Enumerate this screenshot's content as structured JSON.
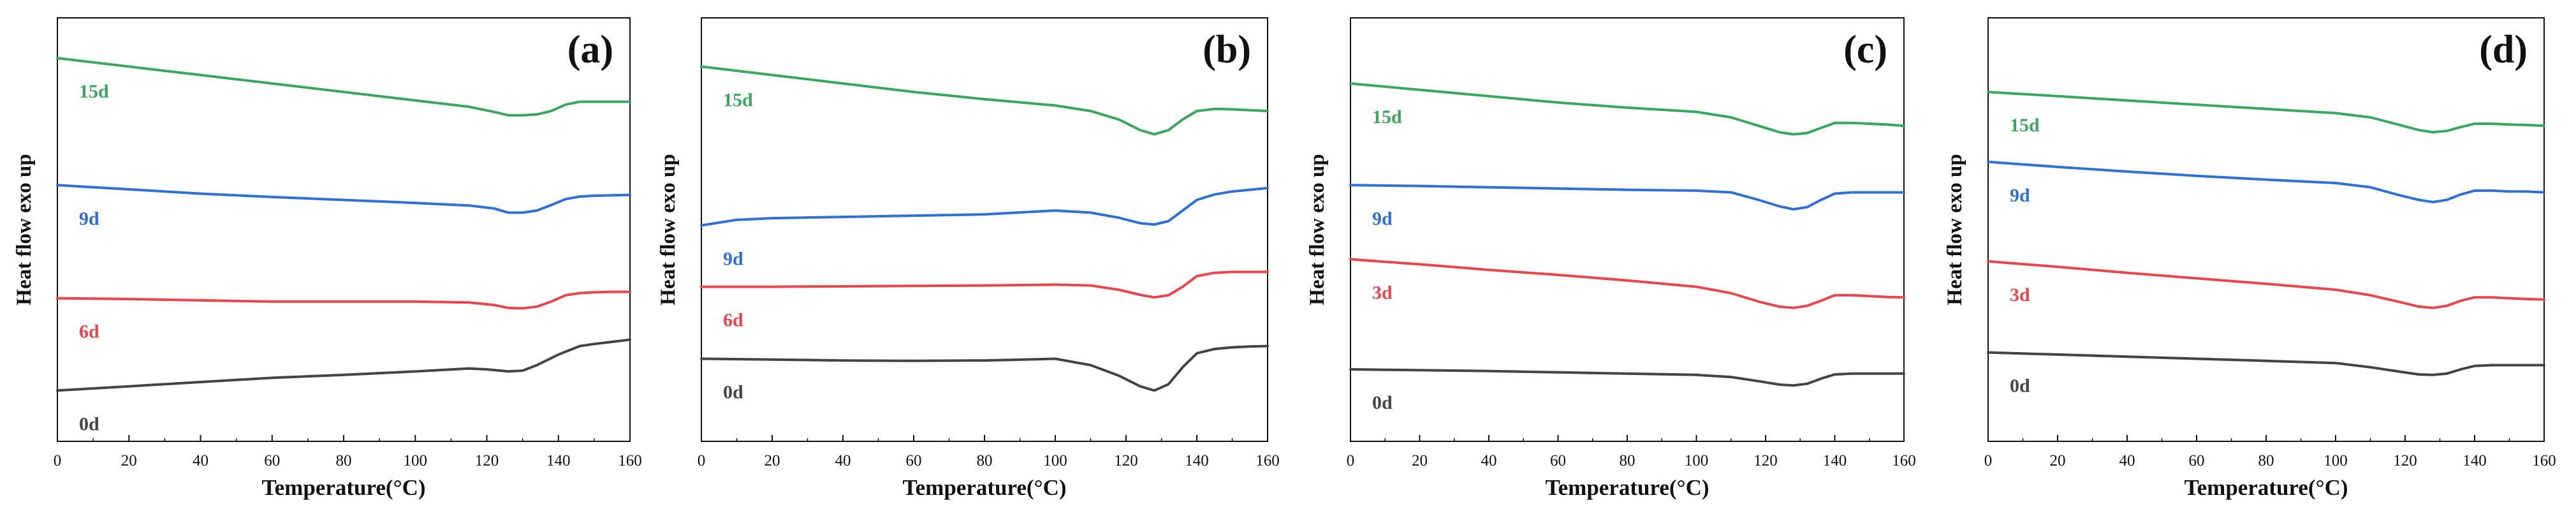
{
  "figure": {
    "panels_count": 4
  },
  "chart_data": [
    {
      "panel_label": "(a)",
      "type": "line",
      "xlabel": "Temperature(°C)",
      "ylabel": "Heat flow exo up",
      "xlim": [
        0,
        160
      ],
      "xticks": [
        0,
        20,
        40,
        60,
        80,
        100,
        120,
        140,
        160
      ],
      "y_units": "arbitrary",
      "ylim": [
        0,
        1
      ],
      "series": [
        {
          "name": "15d",
          "color": "#3aa65f",
          "x": [
            0,
            20,
            40,
            60,
            80,
            100,
            115,
            122,
            126,
            130,
            134,
            138,
            142,
            146,
            150,
            155,
            160
          ],
          "y": [
            0.905,
            0.885,
            0.865,
            0.845,
            0.825,
            0.805,
            0.79,
            0.778,
            0.77,
            0.77,
            0.772,
            0.78,
            0.795,
            0.802,
            0.802,
            0.802,
            0.802
          ]
        },
        {
          "name": "9d",
          "color": "#2f6fd6",
          "x": [
            0,
            20,
            40,
            60,
            80,
            100,
            115,
            122,
            126,
            130,
            134,
            138,
            142,
            146,
            150,
            155,
            160
          ],
          "y": [
            0.605,
            0.595,
            0.585,
            0.577,
            0.57,
            0.563,
            0.557,
            0.55,
            0.54,
            0.54,
            0.545,
            0.558,
            0.572,
            0.578,
            0.58,
            0.581,
            0.582
          ]
        },
        {
          "name": "6d",
          "color": "#e8464c",
          "x": [
            0,
            20,
            40,
            60,
            80,
            100,
            115,
            122,
            126,
            130,
            134,
            138,
            142,
            146,
            150,
            155,
            160
          ],
          "y": [
            0.338,
            0.336,
            0.333,
            0.33,
            0.33,
            0.33,
            0.328,
            0.322,
            0.315,
            0.314,
            0.318,
            0.33,
            0.345,
            0.35,
            0.352,
            0.353,
            0.353
          ]
        },
        {
          "name": "0d",
          "color": "#444444",
          "x": [
            0,
            20,
            40,
            60,
            80,
            100,
            115,
            120,
            126,
            130,
            134,
            140,
            146,
            150,
            155,
            160
          ],
          "y": [
            0.12,
            0.13,
            0.14,
            0.15,
            0.157,
            0.165,
            0.172,
            0.17,
            0.165,
            0.167,
            0.18,
            0.205,
            0.225,
            0.23,
            0.235,
            0.24
          ]
        }
      ]
    },
    {
      "panel_label": "(b)",
      "type": "line",
      "xlabel": "Temperature(°C)",
      "ylabel": "Heat flow exo up",
      "xlim": [
        0,
        160
      ],
      "xticks": [
        0,
        20,
        40,
        60,
        80,
        100,
        120,
        140,
        160
      ],
      "y_units": "arbitrary",
      "ylim": [
        0,
        1
      ],
      "series": [
        {
          "name": "15d",
          "color": "#3aa65f",
          "x": [
            0,
            20,
            40,
            60,
            80,
            100,
            110,
            118,
            124,
            128,
            132,
            136,
            140,
            145,
            150,
            155,
            160
          ],
          "y": [
            0.885,
            0.865,
            0.845,
            0.825,
            0.808,
            0.793,
            0.78,
            0.76,
            0.735,
            0.725,
            0.735,
            0.76,
            0.78,
            0.785,
            0.784,
            0.782,
            0.78
          ]
        },
        {
          "name": "9d",
          "color": "#2f6fd6",
          "x": [
            0,
            10,
            20,
            40,
            60,
            80,
            100,
            110,
            118,
            124,
            128,
            132,
            136,
            140,
            145,
            150,
            160
          ],
          "y": [
            0.51,
            0.523,
            0.527,
            0.53,
            0.533,
            0.536,
            0.545,
            0.54,
            0.528,
            0.515,
            0.512,
            0.52,
            0.545,
            0.57,
            0.583,
            0.59,
            0.598
          ]
        },
        {
          "name": "6d",
          "color": "#e8464c",
          "x": [
            0,
            20,
            40,
            60,
            80,
            100,
            110,
            118,
            124,
            128,
            132,
            136,
            140,
            145,
            150,
            155,
            160
          ],
          "y": [
            0.365,
            0.365,
            0.366,
            0.367,
            0.368,
            0.37,
            0.368,
            0.358,
            0.346,
            0.34,
            0.345,
            0.365,
            0.39,
            0.398,
            0.4,
            0.4,
            0.4
          ]
        },
        {
          "name": "0d",
          "color": "#444444",
          "x": [
            0,
            20,
            40,
            60,
            80,
            100,
            110,
            118,
            124,
            128,
            132,
            136,
            140,
            145,
            150,
            155,
            160
          ],
          "y": [
            0.195,
            0.193,
            0.191,
            0.19,
            0.191,
            0.195,
            0.18,
            0.155,
            0.13,
            0.12,
            0.135,
            0.175,
            0.208,
            0.218,
            0.222,
            0.224,
            0.225
          ]
        }
      ]
    },
    {
      "panel_label": "(c)",
      "type": "line",
      "xlabel": "Temperature(°C)",
      "ylabel": "Heat flow exo up",
      "xlim": [
        0,
        160
      ],
      "xticks": [
        0,
        20,
        40,
        60,
        80,
        100,
        120,
        140,
        160
      ],
      "y_units": "arbitrary",
      "ylim": [
        0,
        1
      ],
      "series": [
        {
          "name": "15d",
          "color": "#3aa65f",
          "x": [
            0,
            20,
            40,
            60,
            80,
            100,
            110,
            118,
            124,
            128,
            132,
            136,
            140,
            145,
            150,
            155,
            160
          ],
          "y": [
            0.845,
            0.83,
            0.815,
            0.8,
            0.788,
            0.778,
            0.765,
            0.745,
            0.73,
            0.725,
            0.728,
            0.74,
            0.752,
            0.752,
            0.75,
            0.748,
            0.745
          ]
        },
        {
          "name": "9d",
          "color": "#2f6fd6",
          "x": [
            0,
            20,
            40,
            60,
            80,
            100,
            110,
            118,
            124,
            128,
            132,
            136,
            140,
            145,
            150,
            155,
            160
          ],
          "y": [
            0.605,
            0.603,
            0.6,
            0.597,
            0.594,
            0.592,
            0.588,
            0.57,
            0.555,
            0.548,
            0.553,
            0.57,
            0.585,
            0.588,
            0.588,
            0.588,
            0.588
          ]
        },
        {
          "name": "3d",
          "color": "#e8464c",
          "x": [
            0,
            20,
            40,
            60,
            80,
            100,
            110,
            118,
            124,
            128,
            132,
            136,
            140,
            145,
            150,
            155,
            160
          ],
          "y": [
            0.43,
            0.418,
            0.405,
            0.393,
            0.38,
            0.365,
            0.35,
            0.33,
            0.318,
            0.315,
            0.32,
            0.332,
            0.345,
            0.345,
            0.343,
            0.341,
            0.34
          ]
        },
        {
          "name": "0d",
          "color": "#444444",
          "x": [
            0,
            20,
            40,
            60,
            80,
            100,
            110,
            118,
            124,
            128,
            132,
            136,
            140,
            145,
            150,
            155,
            160
          ],
          "y": [
            0.17,
            0.168,
            0.166,
            0.163,
            0.16,
            0.157,
            0.152,
            0.142,
            0.134,
            0.132,
            0.136,
            0.148,
            0.158,
            0.16,
            0.16,
            0.16,
            0.16
          ]
        }
      ]
    },
    {
      "panel_label": "(d)",
      "type": "line",
      "xlabel": "Temperature(°C)",
      "ylabel": "Heat flow exo up",
      "xlim": [
        0,
        160
      ],
      "xticks": [
        0,
        20,
        40,
        60,
        80,
        100,
        120,
        140,
        160
      ],
      "y_units": "arbitrary",
      "ylim": [
        0,
        1
      ],
      "series": [
        {
          "name": "15d",
          "color": "#3aa65f",
          "x": [
            0,
            20,
            40,
            60,
            80,
            100,
            110,
            118,
            124,
            128,
            132,
            136,
            140,
            145,
            150,
            155,
            160
          ],
          "y": [
            0.825,
            0.815,
            0.805,
            0.795,
            0.785,
            0.775,
            0.765,
            0.748,
            0.735,
            0.73,
            0.733,
            0.742,
            0.75,
            0.75,
            0.748,
            0.747,
            0.745
          ]
        },
        {
          "name": "9d",
          "color": "#2f6fd6",
          "x": [
            0,
            20,
            40,
            60,
            80,
            100,
            110,
            118,
            124,
            128,
            132,
            136,
            140,
            145,
            150,
            155,
            160
          ],
          "y": [
            0.66,
            0.648,
            0.637,
            0.627,
            0.618,
            0.61,
            0.6,
            0.582,
            0.57,
            0.565,
            0.57,
            0.583,
            0.592,
            0.592,
            0.59,
            0.59,
            0.588
          ]
        },
        {
          "name": "3d",
          "color": "#e8464c",
          "x": [
            0,
            20,
            40,
            60,
            80,
            100,
            110,
            118,
            124,
            128,
            132,
            136,
            140,
            145,
            150,
            155,
            160
          ],
          "y": [
            0.425,
            0.412,
            0.398,
            0.385,
            0.372,
            0.358,
            0.345,
            0.33,
            0.318,
            0.315,
            0.32,
            0.332,
            0.34,
            0.34,
            0.338,
            0.336,
            0.335
          ]
        },
        {
          "name": "0d",
          "color": "#444444",
          "x": [
            0,
            20,
            40,
            60,
            80,
            100,
            110,
            118,
            124,
            128,
            132,
            136,
            140,
            145,
            150,
            155,
            160
          ],
          "y": [
            0.21,
            0.205,
            0.2,
            0.195,
            0.19,
            0.185,
            0.175,
            0.165,
            0.158,
            0.157,
            0.16,
            0.17,
            0.178,
            0.18,
            0.18,
            0.18,
            0.18
          ]
        }
      ]
    }
  ]
}
